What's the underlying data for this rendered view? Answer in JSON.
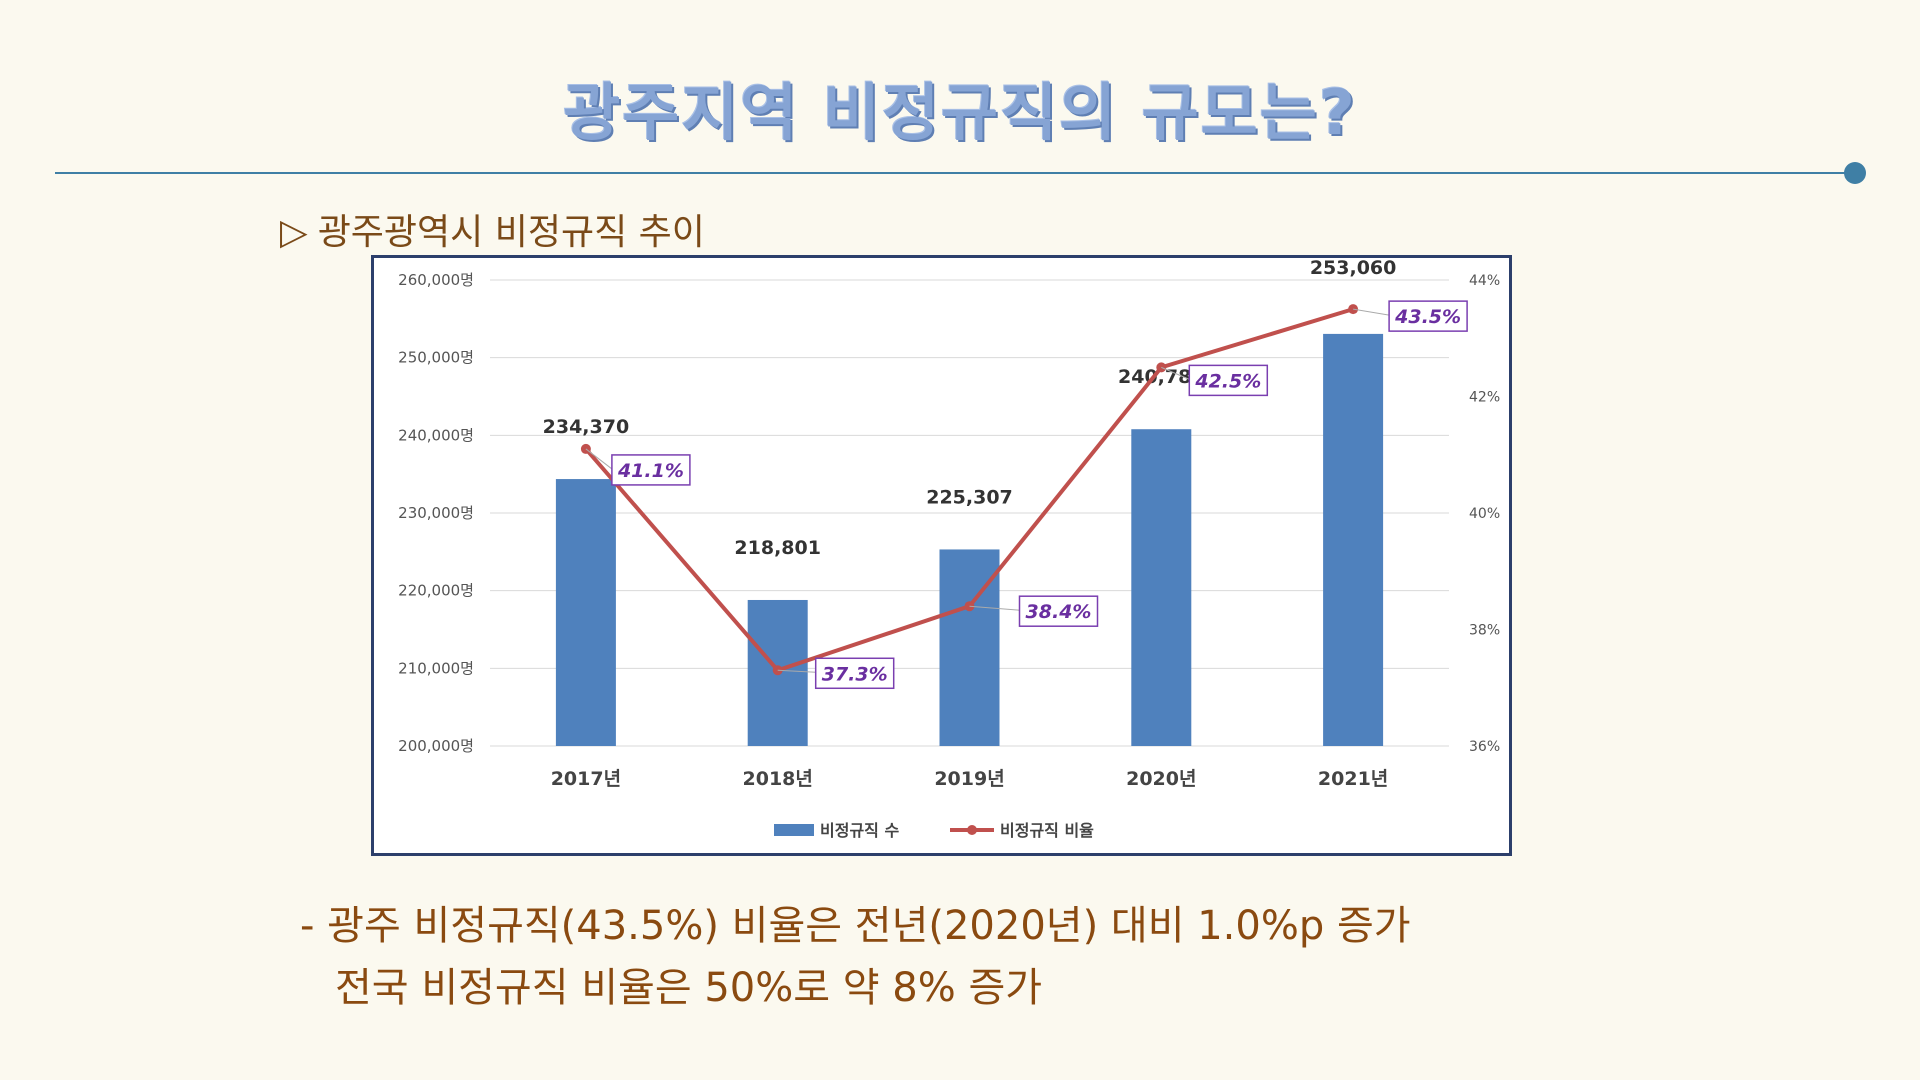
{
  "slide": {
    "title": "광주지역 비정규직의 규모는?",
    "subtitle_marker": "▷",
    "subtitle": "광주광역시 비정규직 추이",
    "note_line1": "- 광주 비정규직(43.5%) 비율은 전년(2020년) 대비 1.0%p 증가",
    "note_line2": "전국 비정규직 비율은 50%로 약 8% 증가"
  },
  "colors": {
    "bar": "#4f81bd",
    "line": "#c0504d",
    "pct_text": "#6a2fa0",
    "title": "#86a4d4",
    "note": "#8a4a10"
  },
  "chart_data": {
    "type": "bar",
    "categories": [
      "2017년",
      "2018년",
      "2019년",
      "2020년",
      "2021년"
    ],
    "series": [
      {
        "name": "비정규직 수",
        "type": "bar",
        "axis": "left",
        "values": [
          234370,
          218801,
          225307,
          240787,
          253060
        ],
        "labels": [
          "234,370",
          "218,801",
          "225,307",
          "240,787",
          "253,060"
        ]
      },
      {
        "name": "비정규직 비율",
        "type": "line",
        "axis": "right",
        "values": [
          41.1,
          37.3,
          38.4,
          42.5,
          43.5
        ],
        "labels": [
          "41.1%",
          "37.3%",
          "38.4%",
          "42.5%",
          "43.5%"
        ]
      }
    ],
    "y_left": {
      "ylim": [
        200000,
        260000
      ],
      "ticks": [
        "200,000명",
        "210,000명",
        "220,000명",
        "230,000명",
        "240,000명",
        "250,000명",
        "260,000명"
      ]
    },
    "y_right": {
      "ylim": [
        36,
        44
      ],
      "ticks": [
        "36%",
        "38%",
        "40%",
        "42%",
        "44%"
      ]
    },
    "grid": true,
    "legend_position": "bottom"
  }
}
